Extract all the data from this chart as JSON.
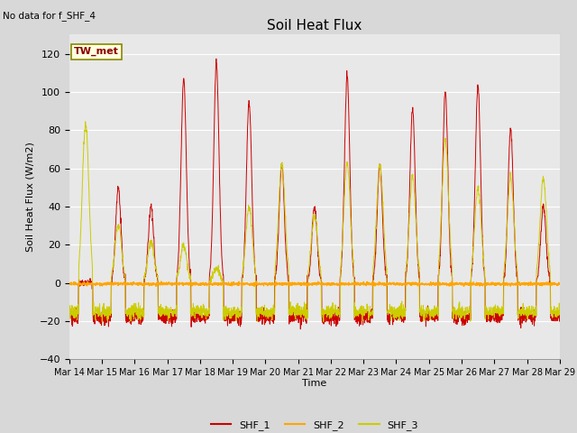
{
  "title": "Soil Heat Flux",
  "subtitle": "No data for f_SHF_4",
  "ylabel": "Soil Heat Flux (W/m2)",
  "xlabel": "Time",
  "station_label": "TW_met",
  "ylim": [
    -40,
    130
  ],
  "yticks": [
    -40,
    -20,
    0,
    20,
    40,
    60,
    80,
    100,
    120
  ],
  "legend_entries": [
    "SHF_1",
    "SHF_2",
    "SHF_3"
  ],
  "colors": {
    "SHF_1": "#cc0000",
    "SHF_2": "#ffa500",
    "SHF_3": "#cccc00"
  },
  "background_color": "#e8e8e8",
  "grid_color": "#ffffff",
  "n_days": 15,
  "start_day": 14,
  "points_per_day": 144,
  "shf1_day_peaks": [
    0,
    50,
    40,
    107,
    115,
    95,
    62,
    40,
    109,
    62,
    91,
    100,
    103,
    80,
    40,
    42
  ],
  "shf1_night_min": -18,
  "shf3_day_peaks": [
    83,
    30,
    22,
    20,
    8,
    40,
    62,
    35,
    62,
    62,
    55,
    75,
    50,
    55,
    55,
    55
  ],
  "shf3_night_min": -15
}
